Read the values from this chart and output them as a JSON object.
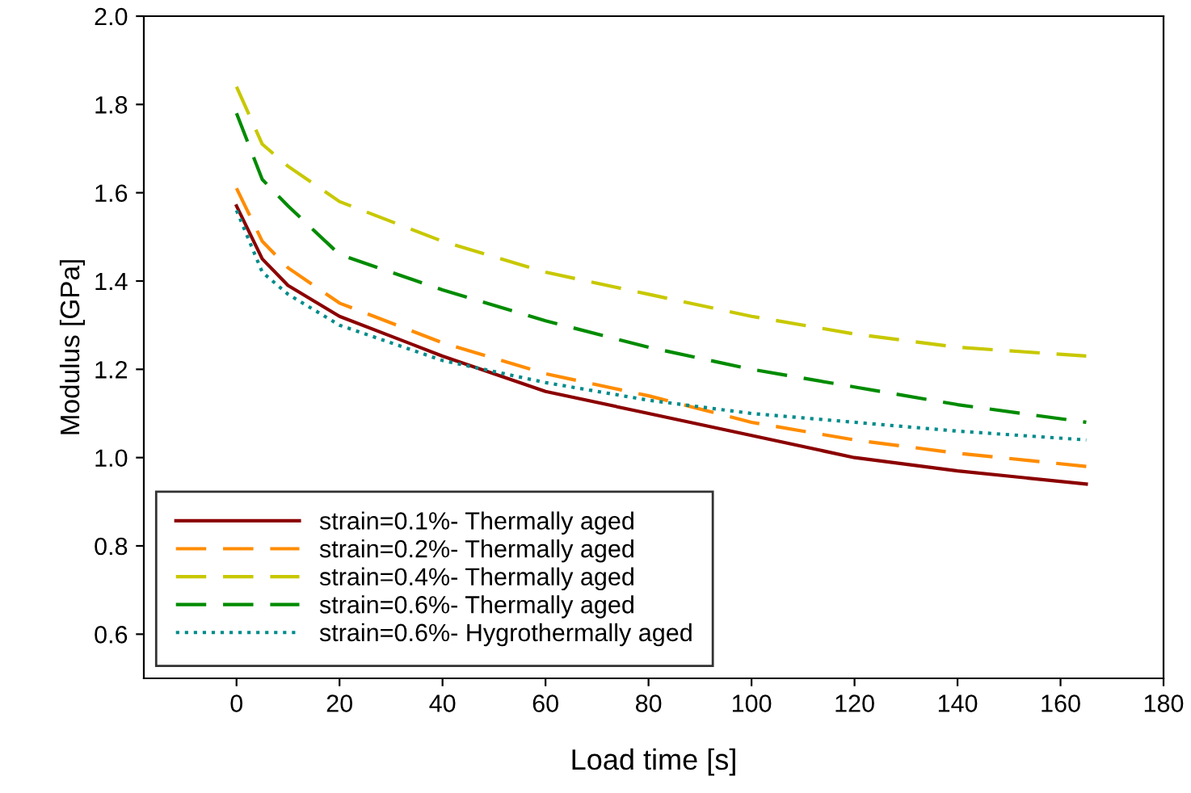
{
  "chart_data": {
    "type": "line",
    "xlabel": "Load time [s]",
    "ylabel": "Modulus [GPa]",
    "x": [
      0,
      5,
      10,
      20,
      40,
      60,
      80,
      100,
      120,
      140,
      165
    ],
    "xlim": [
      -18,
      180
    ],
    "xticks": [
      0,
      20,
      40,
      60,
      80,
      100,
      120,
      140,
      160,
      180
    ],
    "ylim": [
      0.5,
      2.0
    ],
    "yticks": [
      0.6,
      0.8,
      {
        "value": 1,
        "label": "1.0"
      },
      1.2,
      1.4,
      1.6,
      1.8,
      {
        "value": 2,
        "label": "2.0"
      }
    ],
    "grid": false,
    "legend": "bottom left",
    "marker": "none",
    "series": [
      {
        "name": "strain=0.1%- Thermally aged",
        "color": "#8b0000",
        "line_style": "solid",
        "values": [
          1.57,
          1.45,
          1.39,
          1.32,
          1.23,
          1.15,
          1.1,
          1.05,
          1.0,
          0.97,
          0.94
        ]
      },
      {
        "name": "strain=0.2%- Thermally aged",
        "color": "#ff8c00",
        "line_style": "dashed",
        "values": [
          1.61,
          1.49,
          1.43,
          1.35,
          1.26,
          1.19,
          1.14,
          1.08,
          1.04,
          1.01,
          0.98
        ]
      },
      {
        "name": "strain=0.4%- Thermally aged",
        "color": "#c8c800",
        "line_style": "dashed",
        "values": [
          1.84,
          1.71,
          1.66,
          1.58,
          1.49,
          1.42,
          1.37,
          1.32,
          1.28,
          1.25,
          1.23
        ]
      },
      {
        "name": "strain=0.6%- Thermally aged",
        "color": "#008b00",
        "line_style": "dashed",
        "values": [
          1.78,
          1.63,
          1.57,
          1.46,
          1.38,
          1.31,
          1.25,
          1.2,
          1.16,
          1.12,
          1.08
        ]
      },
      {
        "name": "strain=0.6%- Hygrothermally aged",
        "color": "#008b8b",
        "line_style": "dotted",
        "values": [
          1.56,
          1.42,
          1.37,
          1.3,
          1.22,
          1.17,
          1.13,
          1.1,
          1.08,
          1.06,
          1.04
        ]
      }
    ]
  }
}
